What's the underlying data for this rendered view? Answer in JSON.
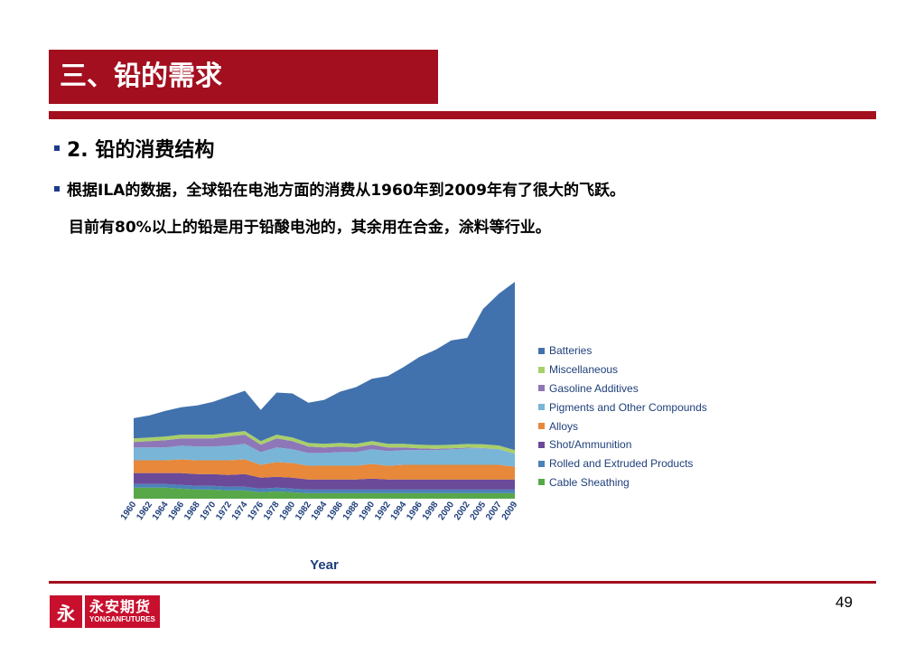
{
  "header": {
    "title": "三、铅的需求"
  },
  "section": {
    "heading": "2. 铅的消费结构"
  },
  "body": {
    "line1": "根据ILA的数据，全球铅在电池方面的消费从1960年到2009年有了很大的飞跃。",
    "line2": "目前有80%以上的铅是用于铅酸电池的，其余用在合金，涂料等行业。"
  },
  "colors": {
    "brand": "#a30f1f",
    "bullet": "#1f3a8a"
  },
  "chart_data": {
    "type": "area",
    "stacked": true,
    "xlabel": "Year",
    "x": [
      "1960",
      "1962",
      "1964",
      "1966",
      "1968",
      "1970",
      "1972",
      "1974",
      "1976",
      "1978",
      "1980",
      "1982",
      "1984",
      "1986",
      "1988",
      "1990",
      "1992",
      "1994",
      "1996",
      "1998",
      "2000",
      "2002",
      "2005",
      "2007",
      "2009"
    ],
    "series": [
      {
        "name": "Cable Sheathing",
        "color": "#58a84a",
        "values": [
          6,
          6,
          6,
          5.5,
          5,
          5,
          4.5,
          4.5,
          3.5,
          4,
          3.5,
          3,
          3,
          3,
          3,
          3,
          3,
          3,
          3,
          3,
          3,
          3,
          3,
          3,
          3
        ]
      },
      {
        "name": "Rolled and Extruded Products",
        "color": "#4a82b8",
        "values": [
          2,
          2,
          2,
          2,
          2,
          2,
          2,
          2,
          2,
          2,
          2,
          2,
          2,
          2,
          2,
          2,
          2,
          2,
          2,
          2,
          2,
          2,
          2,
          2,
          2
        ]
      },
      {
        "name": "Shot/Ammunition",
        "color": "#6b4a9a",
        "values": [
          6,
          6,
          6,
          6.5,
          6.5,
          6.5,
          6.5,
          7,
          6,
          6,
          6,
          5.5,
          5.5,
          5.5,
          5.5,
          6,
          5.5,
          5.5,
          5.5,
          5.5,
          5.5,
          5.5,
          5.5,
          5.5,
          5.5
        ]
      },
      {
        "name": "Alloys",
        "color": "#e7883a",
        "values": [
          7,
          7,
          7,
          7.5,
          7.5,
          7.5,
          8,
          8,
          7,
          8,
          8,
          7.5,
          7.5,
          7.5,
          7.5,
          8,
          7.5,
          8,
          8,
          8,
          8,
          8,
          8,
          8,
          7
        ]
      },
      {
        "name": "Pigments and Other Compounds",
        "color": "#79b5d6",
        "values": [
          7,
          7,
          7,
          7.5,
          7.5,
          7.5,
          8,
          8.5,
          7,
          8,
          7.5,
          7,
          7,
          7.5,
          7.5,
          8,
          8,
          8,
          8,
          8,
          8.5,
          9,
          9,
          8.5,
          7
        ]
      },
      {
        "name": "Gasoline Additives",
        "color": "#8e77b8",
        "values": [
          3,
          3.5,
          4,
          4,
          4.5,
          4.5,
          5,
          5,
          4,
          5,
          4.5,
          3.5,
          3,
          3,
          2.5,
          2.5,
          2,
          1.5,
          1,
          0.8,
          0.5,
          0.4,
          0.2,
          0.1,
          0
        ]
      },
      {
        "name": "Miscellaneous",
        "color": "#a8cf6a",
        "values": [
          2,
          2,
          2,
          2,
          2,
          2,
          2,
          2,
          2,
          2,
          2,
          2,
          2,
          2,
          2,
          2,
          2,
          2,
          2,
          2,
          2,
          2,
          2,
          2,
          2
        ]
      },
      {
        "name": "Batteries",
        "color": "#4272ad",
        "values": [
          11,
          12,
          14,
          15,
          16,
          18,
          20,
          22,
          17,
          23,
          24,
          22,
          24,
          28,
          31,
          34,
          37,
          42,
          48,
          52,
          57,
          58,
          74,
          83,
          92
        ]
      }
    ]
  },
  "legend_order": [
    "Batteries",
    "Miscellaneous",
    "Gasoline Additives",
    "Pigments and Other Compounds",
    "Alloys",
    "Shot/Ammunition",
    "Rolled and Extruded Products",
    "Cable Sheathing"
  ],
  "footer": {
    "page_number": "49",
    "logo_cn": "永安期货",
    "logo_en": "YONGANFUTURES",
    "logo_mark": "永"
  }
}
